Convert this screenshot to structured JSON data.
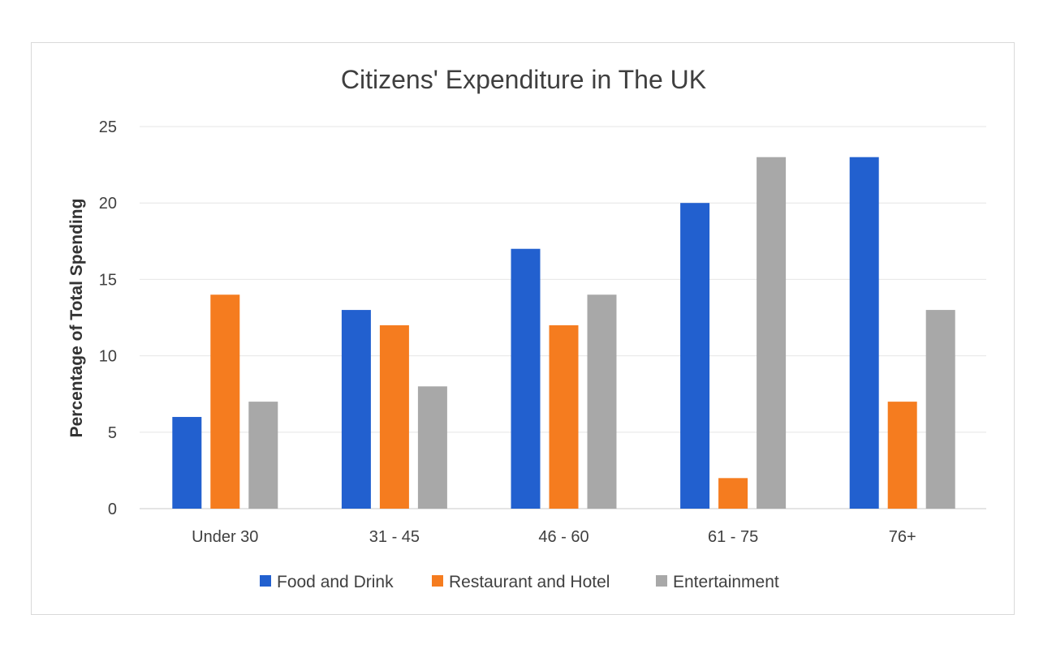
{
  "chart_data": {
    "type": "bar",
    "title": "Citizens' Expenditure in The UK",
    "xlabel": "",
    "ylabel": "Percentage of Total Spending",
    "ylim": [
      0,
      25
    ],
    "yticks": [
      0,
      5,
      10,
      15,
      20,
      25
    ],
    "grid": true,
    "legend_position": "bottom",
    "categories": [
      "Under 30",
      "31 - 45",
      "46 - 60",
      "61 - 75",
      "76+"
    ],
    "series": [
      {
        "name": "Food and Drink",
        "color": "#2260CF",
        "values": [
          6,
          13,
          17,
          20,
          23
        ]
      },
      {
        "name": "Restaurant and Hotel",
        "color": "#F57C1F",
        "values": [
          14,
          12,
          12,
          2,
          7
        ]
      },
      {
        "name": "Entertainment",
        "color": "#A8A8A8",
        "values": [
          7,
          8,
          14,
          23,
          13
        ]
      }
    ]
  }
}
